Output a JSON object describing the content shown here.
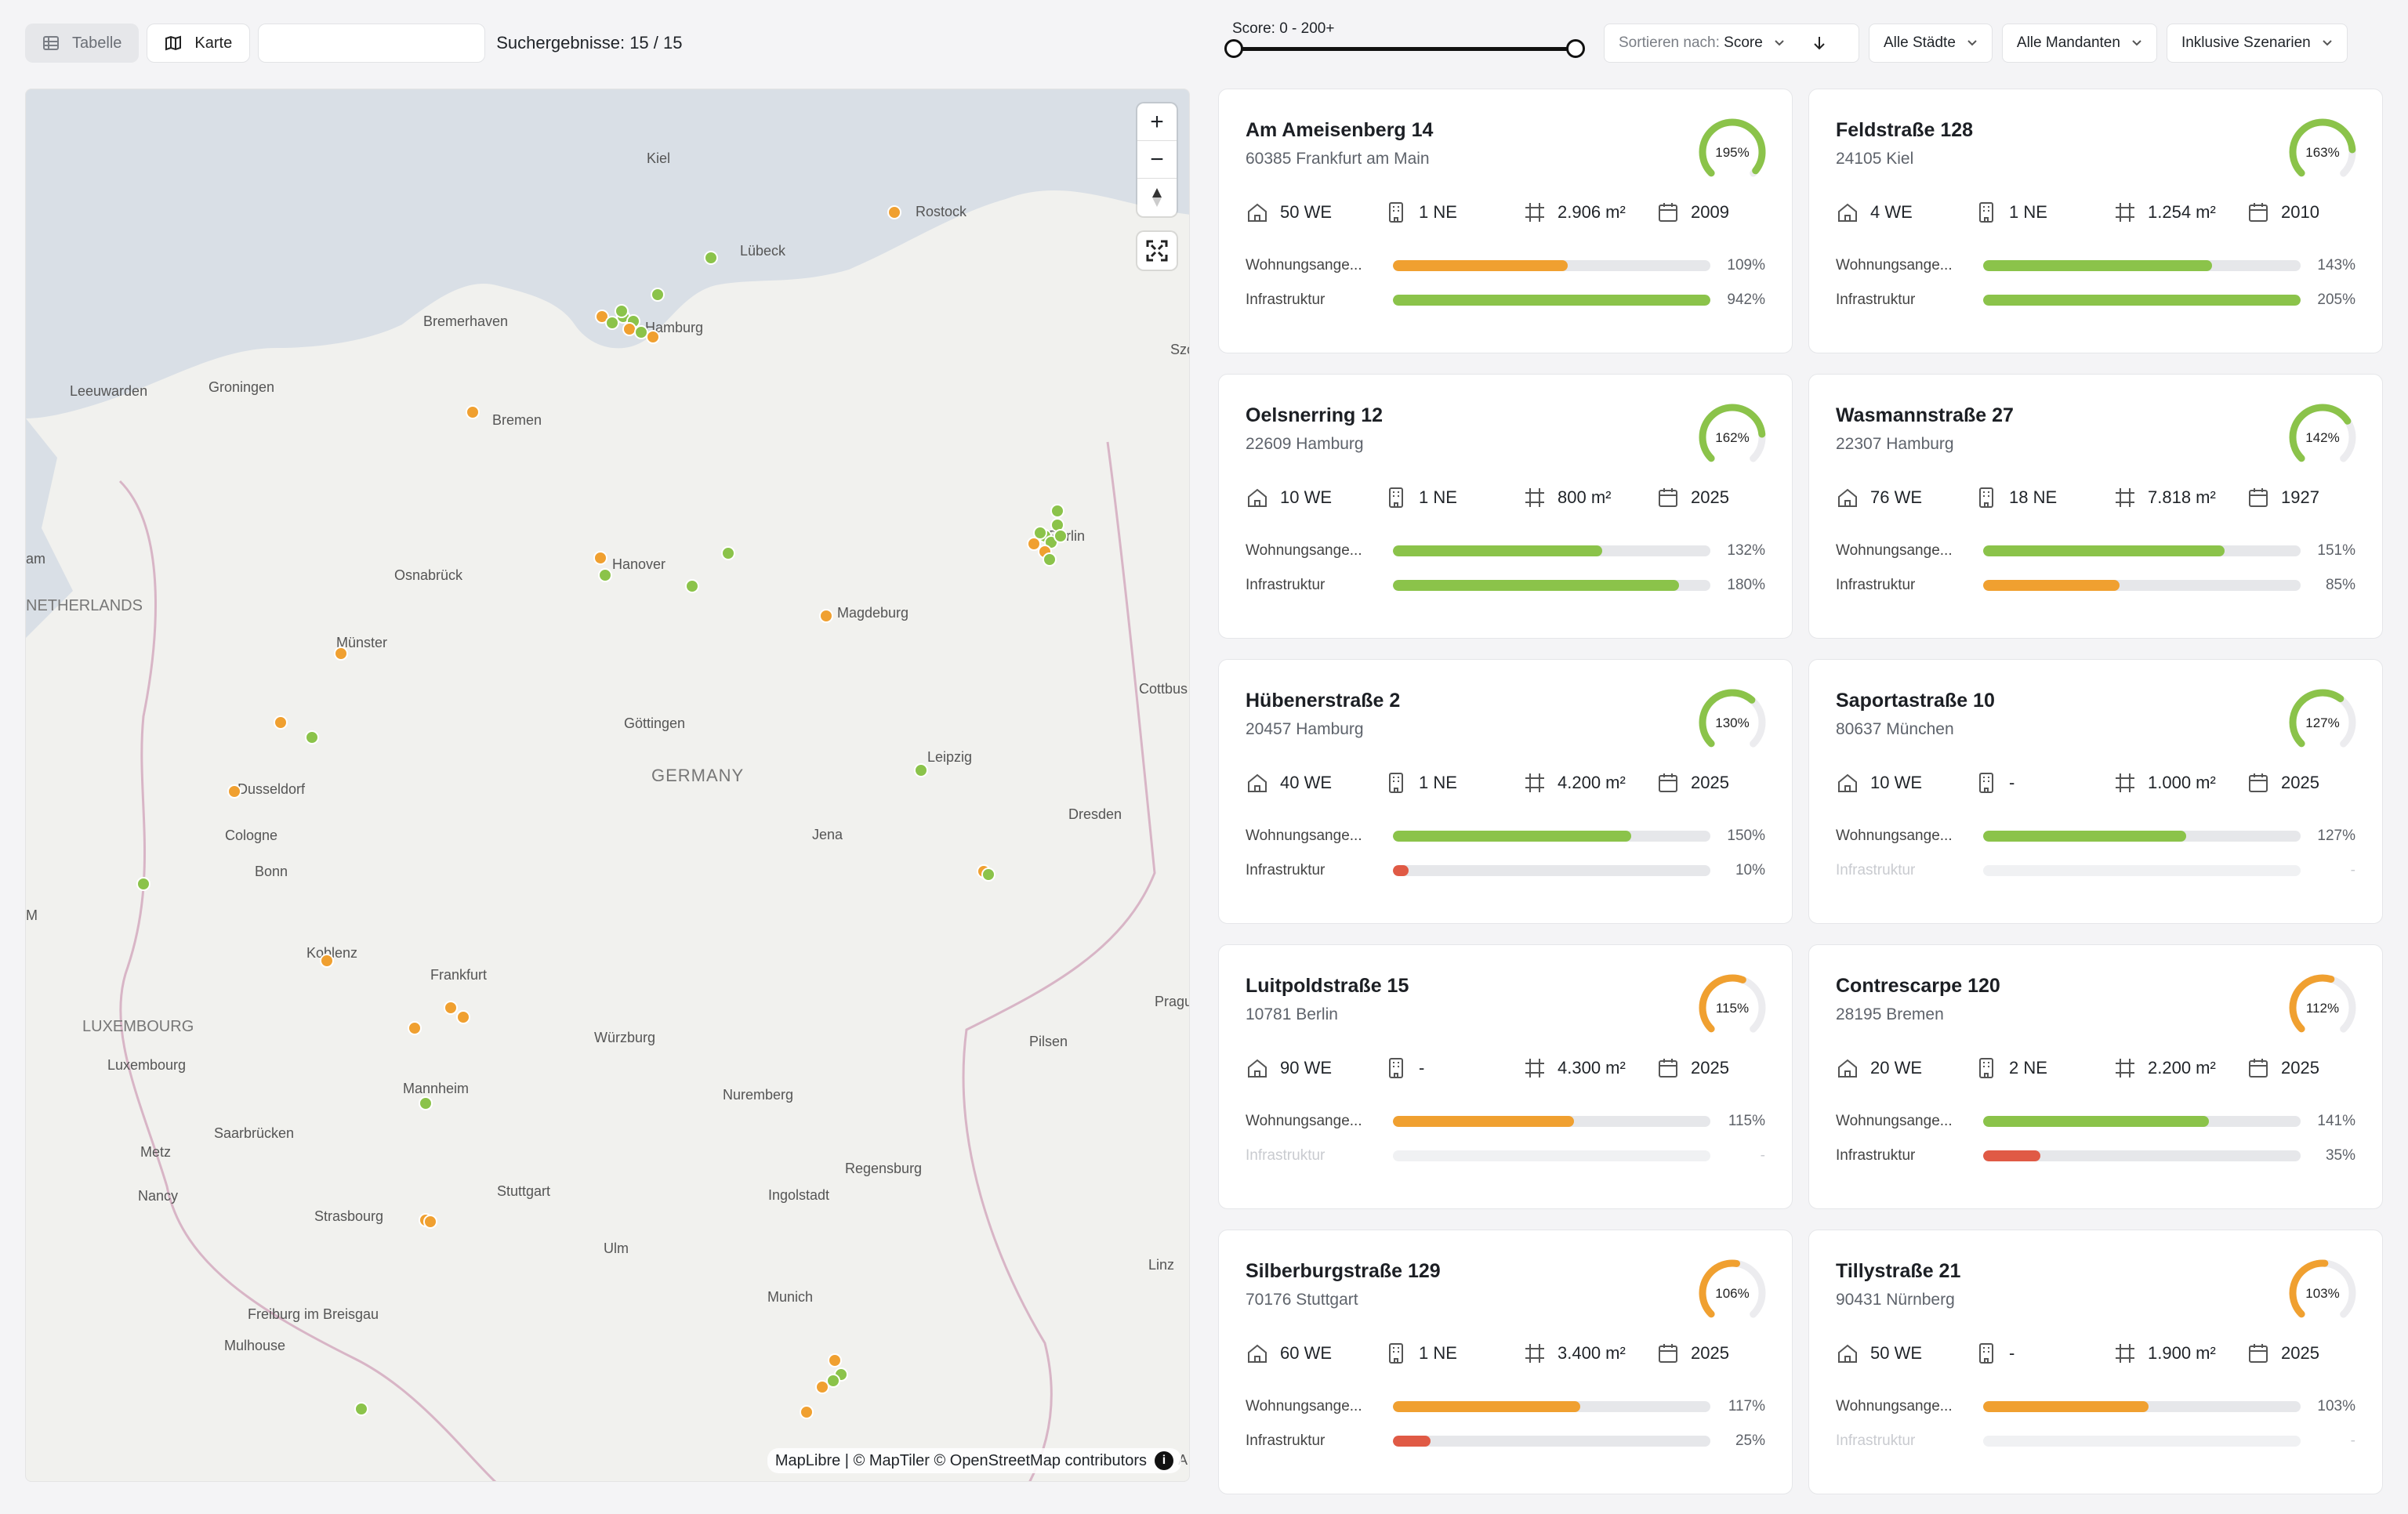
{
  "toolbar": {
    "view_table": "Tabelle",
    "view_map": "Karte",
    "search_placeholder": "",
    "results_label": "Suchergebnisse: 15 / 15"
  },
  "filters": {
    "score_label": "Score: 0 - 200+",
    "sort_prefix": "Sortieren nach:",
    "sort_value": "Score",
    "cities": "Alle Städte",
    "tenants": "Alle Mandanten",
    "scenarios": "Inklusive Szenarien"
  },
  "map": {
    "attribution": "MapLibre | © MapTiler © OpenStreetMap contributors",
    "info": "i",
    "labels": [
      "Kiel",
      "Rostock",
      "Lübeck",
      "Bremerhaven",
      "Hamburg",
      "Groningen",
      "Leeuwarden",
      "Bremen",
      "Szc",
      "am",
      "NETHERLANDS",
      "Osnabrück",
      "Hanover",
      "Berlin",
      "Magdeburg",
      "Münster",
      "Cottbus",
      "Göttingen",
      "Leipzig",
      "GERMANY",
      "Dusseldorf",
      "Dresden",
      "Cologne",
      "Jena",
      "Bonn",
      "Koblenz",
      "Frankfurt",
      "Prague",
      "LUXEMBOURG",
      "Luxembourg",
      "Würzburg",
      "Pilsen",
      "Mannheim",
      "Nuremberg",
      "Saarbrücken",
      "Metz",
      "Regensburg",
      "Stuttgart",
      "Ingolstadt",
      "Nancy",
      "Strasbourg",
      "Ulm",
      "Linz",
      "Munich",
      "Freiburg im Breisgau",
      "Mulhouse",
      "A",
      "M"
    ],
    "colors": {
      "green": "#8bc34a",
      "orange": "#f0a030",
      "red": "#e05a45",
      "water": "#d9dfe6",
      "land": "#f1f1ee"
    }
  },
  "cards": [
    {
      "title": "Am Ameisenberg 14",
      "city": "60385 Frankfurt am Main",
      "score": "195%",
      "score_value": 1.95,
      "gauge_color": "#8bc34a",
      "we": "50 WE",
      "ne": "1 NE",
      "area": "2.906 m²",
      "year": "2009",
      "bar1_label": "Wohnungsange...",
      "bar1_pct": "109%",
      "bar1_fill": 0.55,
      "bar1_color": "#f0a030",
      "bar2_label": "Infrastruktur",
      "bar2_pct": "942%",
      "bar2_fill": 1.0,
      "bar2_color": "#8bc34a",
      "bar2_dim": false
    },
    {
      "title": "Feldstraße 128",
      "city": "24105 Kiel",
      "score": "163%",
      "score_value": 1.63,
      "gauge_color": "#8bc34a",
      "we": "4 WE",
      "ne": "1 NE",
      "area": "1.254 m²",
      "year": "2010",
      "bar1_label": "Wohnungsange...",
      "bar1_pct": "143%",
      "bar1_fill": 0.72,
      "bar1_color": "#8bc34a",
      "bar2_label": "Infrastruktur",
      "bar2_pct": "205%",
      "bar2_fill": 1.0,
      "bar2_color": "#8bc34a",
      "bar2_dim": false
    },
    {
      "title": "Oelsnerring 12",
      "city": "22609 Hamburg",
      "score": "162%",
      "score_value": 1.62,
      "gauge_color": "#8bc34a",
      "we": "10 WE",
      "ne": "1 NE",
      "area": "800 m²",
      "year": "2025",
      "bar1_label": "Wohnungsange...",
      "bar1_pct": "132%",
      "bar1_fill": 0.66,
      "bar1_color": "#8bc34a",
      "bar2_label": "Infrastruktur",
      "bar2_pct": "180%",
      "bar2_fill": 0.9,
      "bar2_color": "#8bc34a",
      "bar2_dim": false
    },
    {
      "title": "Wasmannstraße 27",
      "city": "22307 Hamburg",
      "score": "142%",
      "score_value": 1.42,
      "gauge_color": "#8bc34a",
      "we": "76 WE",
      "ne": "18 NE",
      "area": "7.818 m²",
      "year": "1927",
      "bar1_label": "Wohnungsange...",
      "bar1_pct": "151%",
      "bar1_fill": 0.76,
      "bar1_color": "#8bc34a",
      "bar2_label": "Infrastruktur",
      "bar2_pct": "85%",
      "bar2_fill": 0.43,
      "bar2_color": "#f0a030",
      "bar2_dim": false
    },
    {
      "title": "Hübenerstraße 2",
      "city": "20457 Hamburg",
      "score": "130%",
      "score_value": 1.3,
      "gauge_color": "#8bc34a",
      "we": "40 WE",
      "ne": "1 NE",
      "area": "4.200 m²",
      "year": "2025",
      "bar1_label": "Wohnungsange...",
      "bar1_pct": "150%",
      "bar1_fill": 0.75,
      "bar1_color": "#8bc34a",
      "bar2_label": "Infrastruktur",
      "bar2_pct": "10%",
      "bar2_fill": 0.05,
      "bar2_color": "#e05a45",
      "bar2_dim": false
    },
    {
      "title": "Saportastraße 10",
      "city": "80637 München",
      "score": "127%",
      "score_value": 1.27,
      "gauge_color": "#8bc34a",
      "we": "10 WE",
      "ne": "-",
      "area": "1.000 m²",
      "year": "2025",
      "bar1_label": "Wohnungsange...",
      "bar1_pct": "127%",
      "bar1_fill": 0.64,
      "bar1_color": "#8bc34a",
      "bar2_label": "Infrastruktur",
      "bar2_pct": "-",
      "bar2_fill": 0,
      "bar2_color": "#8bc34a",
      "bar2_dim": true
    },
    {
      "title": "Luitpoldstraße 15",
      "city": "10781 Berlin",
      "score": "115%",
      "score_value": 1.15,
      "gauge_color": "#f0a030",
      "we": "90 WE",
      "ne": "-",
      "area": "4.300 m²",
      "year": "2025",
      "bar1_label": "Wohnungsange...",
      "bar1_pct": "115%",
      "bar1_fill": 0.57,
      "bar1_color": "#f0a030",
      "bar2_label": "Infrastruktur",
      "bar2_pct": "-",
      "bar2_fill": 0,
      "bar2_color": "#8bc34a",
      "bar2_dim": true
    },
    {
      "title": "Contrescarpe 120",
      "city": "28195 Bremen",
      "score": "112%",
      "score_value": 1.12,
      "gauge_color": "#f0a030",
      "we": "20 WE",
      "ne": "2 NE",
      "area": "2.200 m²",
      "year": "2025",
      "bar1_label": "Wohnungsange...",
      "bar1_pct": "141%",
      "bar1_fill": 0.71,
      "bar1_color": "#8bc34a",
      "bar2_label": "Infrastruktur",
      "bar2_pct": "35%",
      "bar2_fill": 0.18,
      "bar2_color": "#e05a45",
      "bar2_dim": false
    },
    {
      "title": "Silberburgstraße 129",
      "city": "70176 Stuttgart",
      "score": "106%",
      "score_value": 1.06,
      "gauge_color": "#f0a030",
      "we": "60 WE",
      "ne": "1 NE",
      "area": "3.400 m²",
      "year": "2025",
      "bar1_label": "Wohnungsange...",
      "bar1_pct": "117%",
      "bar1_fill": 0.59,
      "bar1_color": "#f0a030",
      "bar2_label": "Infrastruktur",
      "bar2_pct": "25%",
      "bar2_fill": 0.12,
      "bar2_color": "#e05a45",
      "bar2_dim": false
    },
    {
      "title": "Tillystraße 21",
      "city": "90431 Nürnberg",
      "score": "103%",
      "score_value": 1.03,
      "gauge_color": "#f0a030",
      "we": "50 WE",
      "ne": "-",
      "area": "1.900 m²",
      "year": "2025",
      "bar1_label": "Wohnungsange...",
      "bar1_pct": "103%",
      "bar1_fill": 0.52,
      "bar1_color": "#f0a030",
      "bar2_label": "Infrastruktur",
      "bar2_pct": "-",
      "bar2_fill": 0,
      "bar2_color": "#8bc34a",
      "bar2_dim": true
    }
  ]
}
